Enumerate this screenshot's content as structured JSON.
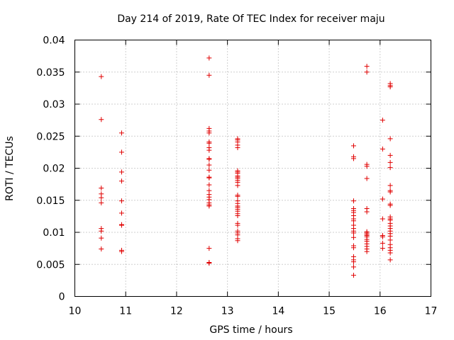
{
  "chart_data": {
    "type": "scatter",
    "title": "Day 214 of 2019, Rate Of TEC Index for receiver maju",
    "xlabel": "GPS time / hours",
    "ylabel": "ROTI / TECUs",
    "xlim": [
      10,
      17
    ],
    "ylim": [
      0,
      0.04
    ],
    "xticks": [
      "10",
      "11",
      "12",
      "13",
      "14",
      "15",
      "16",
      "17"
    ],
    "yticks": [
      "0",
      "0.005",
      "0.01",
      "0.015",
      "0.02",
      "0.025",
      "0.03",
      "0.035",
      "0.04"
    ],
    "grid": true,
    "marker": "+",
    "color": "#e00000",
    "series": [
      {
        "name": "ROTI",
        "points": [
          [
            10.52,
            0.0343
          ],
          [
            10.52,
            0.0276
          ],
          [
            10.52,
            0.0169
          ],
          [
            10.52,
            0.016
          ],
          [
            10.52,
            0.0154
          ],
          [
            10.52,
            0.0146
          ],
          [
            10.52,
            0.0106
          ],
          [
            10.52,
            0.0102
          ],
          [
            10.52,
            0.0091
          ],
          [
            10.52,
            0.0074
          ],
          [
            10.92,
            0.0255
          ],
          [
            10.92,
            0.0225
          ],
          [
            10.92,
            0.0194
          ],
          [
            10.92,
            0.018
          ],
          [
            10.92,
            0.0149
          ],
          [
            10.92,
            0.013
          ],
          [
            10.92,
            0.0112
          ],
          [
            10.92,
            0.0111
          ],
          [
            10.92,
            0.0072
          ],
          [
            10.92,
            0.007
          ],
          [
            12.64,
            0.0372
          ],
          [
            12.64,
            0.0345
          ],
          [
            12.64,
            0.0262
          ],
          [
            12.64,
            0.0258
          ],
          [
            12.64,
            0.0255
          ],
          [
            12.64,
            0.0241
          ],
          [
            12.64,
            0.0239
          ],
          [
            12.64,
            0.0232
          ],
          [
            12.64,
            0.0228
          ],
          [
            12.64,
            0.0215
          ],
          [
            12.64,
            0.0214
          ],
          [
            12.64,
            0.0205
          ],
          [
            12.64,
            0.0197
          ],
          [
            12.64,
            0.0186
          ],
          [
            12.64,
            0.0185
          ],
          [
            12.64,
            0.0174
          ],
          [
            12.64,
            0.0165
          ],
          [
            12.64,
            0.0159
          ],
          [
            12.64,
            0.0155
          ],
          [
            12.64,
            0.0151
          ],
          [
            12.64,
            0.0146
          ],
          [
            12.64,
            0.0143
          ],
          [
            12.64,
            0.0141
          ],
          [
            12.64,
            0.0075
          ],
          [
            12.64,
            0.0053
          ],
          [
            12.64,
            0.0052
          ],
          [
            13.2,
            0.0246
          ],
          [
            13.2,
            0.0244
          ],
          [
            13.2,
            0.0241
          ],
          [
            13.2,
            0.0236
          ],
          [
            13.2,
            0.0232
          ],
          [
            13.2,
            0.0196
          ],
          [
            13.2,
            0.0194
          ],
          [
            13.2,
            0.0192
          ],
          [
            13.2,
            0.0188
          ],
          [
            13.2,
            0.0186
          ],
          [
            13.2,
            0.0184
          ],
          [
            13.2,
            0.0181
          ],
          [
            13.2,
            0.0178
          ],
          [
            13.2,
            0.0173
          ],
          [
            13.2,
            0.0158
          ],
          [
            13.2,
            0.0156
          ],
          [
            13.2,
            0.0149
          ],
          [
            13.2,
            0.0145
          ],
          [
            13.2,
            0.0141
          ],
          [
            13.2,
            0.0139
          ],
          [
            13.2,
            0.0136
          ],
          [
            13.2,
            0.0133
          ],
          [
            13.2,
            0.0129
          ],
          [
            13.2,
            0.0126
          ],
          [
            13.2,
            0.0114
          ],
          [
            13.2,
            0.0111
          ],
          [
            13.2,
            0.0102
          ],
          [
            13.2,
            0.0099
          ],
          [
            13.2,
            0.0096
          ],
          [
            13.2,
            0.009
          ],
          [
            13.2,
            0.0087
          ],
          [
            15.48,
            0.0235
          ],
          [
            15.48,
            0.0218
          ],
          [
            15.48,
            0.0215
          ],
          [
            15.48,
            0.0149
          ],
          [
            15.48,
            0.0137
          ],
          [
            15.48,
            0.0134
          ],
          [
            15.48,
            0.0131
          ],
          [
            15.48,
            0.0126
          ],
          [
            15.48,
            0.0121
          ],
          [
            15.48,
            0.0118
          ],
          [
            15.48,
            0.0111
          ],
          [
            15.48,
            0.0106
          ],
          [
            15.48,
            0.0102
          ],
          [
            15.48,
            0.0099
          ],
          [
            15.48,
            0.0092
          ],
          [
            15.48,
            0.0079
          ],
          [
            15.48,
            0.0076
          ],
          [
            15.48,
            0.0062
          ],
          [
            15.48,
            0.0057
          ],
          [
            15.48,
            0.0054
          ],
          [
            15.48,
            0.0046
          ],
          [
            15.48,
            0.0033
          ],
          [
            15.74,
            0.0359
          ],
          [
            15.74,
            0.035
          ],
          [
            15.74,
            0.0206
          ],
          [
            15.74,
            0.0203
          ],
          [
            15.74,
            0.0184
          ],
          [
            15.74,
            0.0137
          ],
          [
            15.74,
            0.0132
          ],
          [
            15.74,
            0.0101
          ],
          [
            15.74,
            0.0099
          ],
          [
            15.74,
            0.0097
          ],
          [
            15.74,
            0.0095
          ],
          [
            15.74,
            0.0093
          ],
          [
            15.74,
            0.0089
          ],
          [
            15.74,
            0.0086
          ],
          [
            15.74,
            0.0082
          ],
          [
            15.74,
            0.0078
          ],
          [
            15.74,
            0.0074
          ],
          [
            15.74,
            0.007
          ],
          [
            16.05,
            0.0275
          ],
          [
            16.05,
            0.023
          ],
          [
            16.05,
            0.0152
          ],
          [
            16.05,
            0.0121
          ],
          [
            16.05,
            0.0095
          ],
          [
            16.05,
            0.0093
          ],
          [
            16.05,
            0.0083
          ],
          [
            16.05,
            0.0075
          ],
          [
            16.2,
            0.0332
          ],
          [
            16.2,
            0.0329
          ],
          [
            16.2,
            0.0327
          ],
          [
            16.2,
            0.0246
          ],
          [
            16.2,
            0.022
          ],
          [
            16.2,
            0.0209
          ],
          [
            16.2,
            0.0201
          ],
          [
            16.2,
            0.0173
          ],
          [
            16.2,
            0.0165
          ],
          [
            16.2,
            0.0163
          ],
          [
            16.2,
            0.0144
          ],
          [
            16.2,
            0.0142
          ],
          [
            16.2,
            0.0124
          ],
          [
            16.2,
            0.0121
          ],
          [
            16.2,
            0.0119
          ],
          [
            16.2,
            0.0114
          ],
          [
            16.2,
            0.011
          ],
          [
            16.2,
            0.0106
          ],
          [
            16.2,
            0.0102
          ],
          [
            16.2,
            0.0098
          ],
          [
            16.2,
            0.0094
          ],
          [
            16.2,
            0.0088
          ],
          [
            16.2,
            0.0081
          ],
          [
            16.2,
            0.0076
          ],
          [
            16.2,
            0.0072
          ],
          [
            16.2,
            0.0068
          ],
          [
            16.2,
            0.0057
          ]
        ]
      }
    ]
  }
}
